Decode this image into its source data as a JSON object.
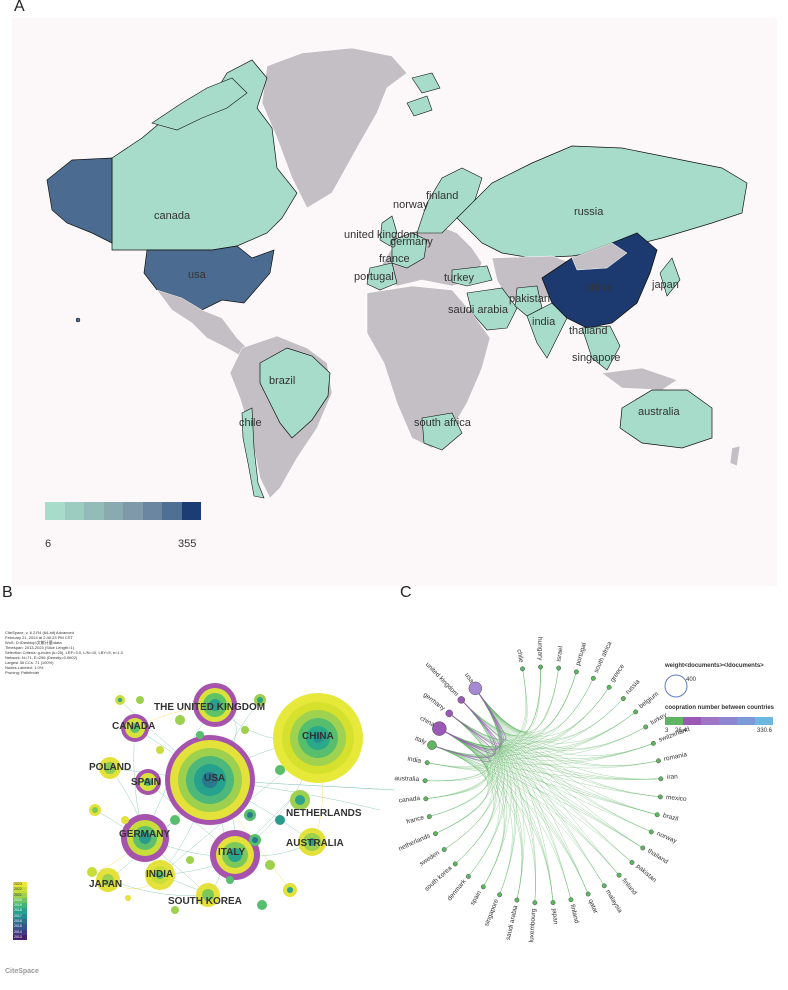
{
  "panel_a": {
    "letter": "A",
    "countries": [
      {
        "name": "canada",
        "value": "low"
      },
      {
        "name": "usa",
        "value": "mid-high"
      },
      {
        "name": "russia",
        "value": "low"
      },
      {
        "name": "china",
        "value": "max"
      },
      {
        "name": "united kingdom",
        "value": "low"
      },
      {
        "name": "germany",
        "value": "low"
      },
      {
        "name": "france",
        "value": "low"
      },
      {
        "name": "portugal",
        "value": "low"
      },
      {
        "name": "norway",
        "value": "low"
      },
      {
        "name": "finland",
        "value": "low"
      },
      {
        "name": "turkey",
        "value": "low"
      },
      {
        "name": "saudi arabia",
        "value": "low"
      },
      {
        "name": "pakistan",
        "value": "low"
      },
      {
        "name": "india",
        "value": "low"
      },
      {
        "name": "thailand",
        "value": "low"
      },
      {
        "name": "japan",
        "value": "low"
      },
      {
        "name": "singapore",
        "value": "low"
      },
      {
        "name": "australia",
        "value": "low"
      },
      {
        "name": "brazil",
        "value": "low"
      },
      {
        "name": "chile",
        "value": "low"
      },
      {
        "name": "south africa",
        "value": "low"
      }
    ],
    "legend": {
      "min": "6",
      "max": "355",
      "colors": [
        "#a6dcc9",
        "#9ccbc0",
        "#93bbb8",
        "#89aab0",
        "#8099aa",
        "#6a86a1",
        "#4f6f93",
        "#1c3d73"
      ]
    },
    "colors": {
      "ocean": "#fcf8f9",
      "no_data": "#c4bfc4",
      "low": "#a6dcc9",
      "mid": "#4b6c90",
      "max": "#1d3a70",
      "border": "#111111"
    }
  },
  "panel_b": {
    "letter": "B",
    "meta": [
      "CiteSpace, v. 6.2.R4 (64-bit) Advanced",
      "February 21, 2024 at 2:40:23 PM CST",
      "WoS: D:\\Desktop\\文献计量\\data",
      "Timespan: 2013-2023 (Slice Length=1)",
      "Selection Criteria: g-index (k=25), LRF=3.0, L/N=10, LBY=5, e=1.0",
      "Network: N=71, E=296 (Density=0.0602)",
      "Largest 38 CCs: 71 (100%)",
      "Nodes Labeled: 1.0%",
      "Pruning: Pathfinder"
    ],
    "nodes": [
      {
        "label": "USA"
      },
      {
        "label": "CHINA"
      },
      {
        "label": "THE UNITED KINGDOM"
      },
      {
        "label": "CANADA"
      },
      {
        "label": "POLAND"
      },
      {
        "label": "SPAIN"
      },
      {
        "label": "GERMANY"
      },
      {
        "label": "ITALY"
      },
      {
        "label": "INDIA"
      },
      {
        "label": "JAPAN"
      },
      {
        "label": "NETHERLANDS"
      },
      {
        "label": "AUSTRALIA"
      },
      {
        "label": "SOUTH KOREA"
      }
    ],
    "year_legend": [
      "2023",
      "2022",
      "2021",
      "2020",
      "2019",
      "2018",
      "2017",
      "2016",
      "2015",
      "2014",
      "2013"
    ],
    "logo": "CiteSpace"
  },
  "panel_c": {
    "letter": "C",
    "countries": [
      "chile",
      "hungary",
      "israel",
      "portugal",
      "south africa",
      "greece",
      "russia",
      "belgium",
      "turkey",
      "switzerland",
      "romania",
      "iran",
      "mexico",
      "brazil",
      "norway",
      "thailand",
      "pakistan",
      "finland",
      "malaysia",
      "qatar",
      "finland",
      "japan",
      "luxembourg",
      "saudi arabia",
      "singapore",
      "spain",
      "denmark",
      "south korea",
      "sweden",
      "netherlands",
      "france",
      "canada",
      "australia",
      "india",
      "italy",
      "china",
      "germany",
      "united kingdom",
      "usa"
    ],
    "legend": {
      "weight_title": "weight<documents></documents>",
      "weight_value": "400",
      "coop_title": "coopration number between countries",
      "coop_min": "3",
      "coop_mid": "26.4",
      "coop_max": "330.6",
      "coop_colors": [
        "#5fb562",
        "#9b59b6",
        "#a076c4",
        "#8e86d0",
        "#7a9bd8",
        "#6cb8de"
      ]
    }
  }
}
